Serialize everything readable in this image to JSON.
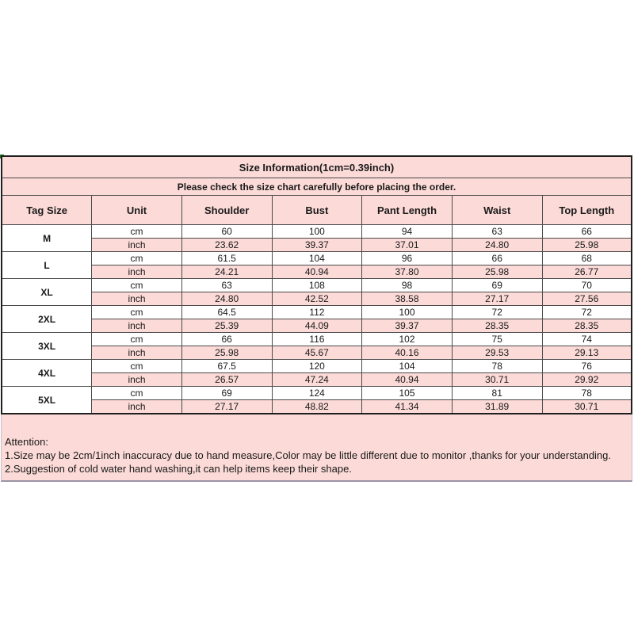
{
  "table": {
    "title": "Size Information(1cm=0.39inch)",
    "subtitle": "Please check the size chart carefully before placing the order.",
    "columns": [
      "Tag Size",
      "Unit",
      "Shoulder",
      "Bust",
      "Pant Length",
      "Waist",
      "Top Length"
    ],
    "unit_labels": {
      "cm": "cm",
      "inch": "inch"
    },
    "rows": [
      {
        "size": "M",
        "cm": [
          "60",
          "100",
          "94",
          "63",
          "66"
        ],
        "inch": [
          "23.62",
          "39.37",
          "37.01",
          "24.80",
          "25.98"
        ]
      },
      {
        "size": "L",
        "cm": [
          "61.5",
          "104",
          "96",
          "66",
          "68"
        ],
        "inch": [
          "24.21",
          "40.94",
          "37.80",
          "25.98",
          "26.77"
        ]
      },
      {
        "size": "XL",
        "cm": [
          "63",
          "108",
          "98",
          "69",
          "70"
        ],
        "inch": [
          "24.80",
          "42.52",
          "38.58",
          "27.17",
          "27.56"
        ]
      },
      {
        "size": "2XL",
        "cm": [
          "64.5",
          "112",
          "100",
          "72",
          "72"
        ],
        "inch": [
          "25.39",
          "44.09",
          "39.37",
          "28.35",
          "28.35"
        ]
      },
      {
        "size": "3XL",
        "cm": [
          "66",
          "116",
          "102",
          "75",
          "74"
        ],
        "inch": [
          "25.98",
          "45.67",
          "40.16",
          "29.53",
          "29.13"
        ]
      },
      {
        "size": "4XL",
        "cm": [
          "67.5",
          "120",
          "104",
          "78",
          "76"
        ],
        "inch": [
          "26.57",
          "47.24",
          "40.94",
          "30.71",
          "29.92"
        ]
      },
      {
        "size": "5XL",
        "cm": [
          "69",
          "124",
          "105",
          "81",
          "78"
        ],
        "inch": [
          "27.17",
          "48.82",
          "41.34",
          "31.89",
          "30.71"
        ]
      }
    ]
  },
  "attention": {
    "heading": "Attention:",
    "lines": [
      "1.Size may be 2cm/1inch inaccuracy due to hand measure,Color may be little different due to monitor ,thanks for your understanding.",
      "2.Suggestion of cold water hand washing,it can help items keep their shape."
    ]
  },
  "colors": {
    "pink": "#fbdad7",
    "inner_border": "#4a4a4a",
    "outer_border": "#1f1f1f",
    "green_marker": "#157a15"
  }
}
